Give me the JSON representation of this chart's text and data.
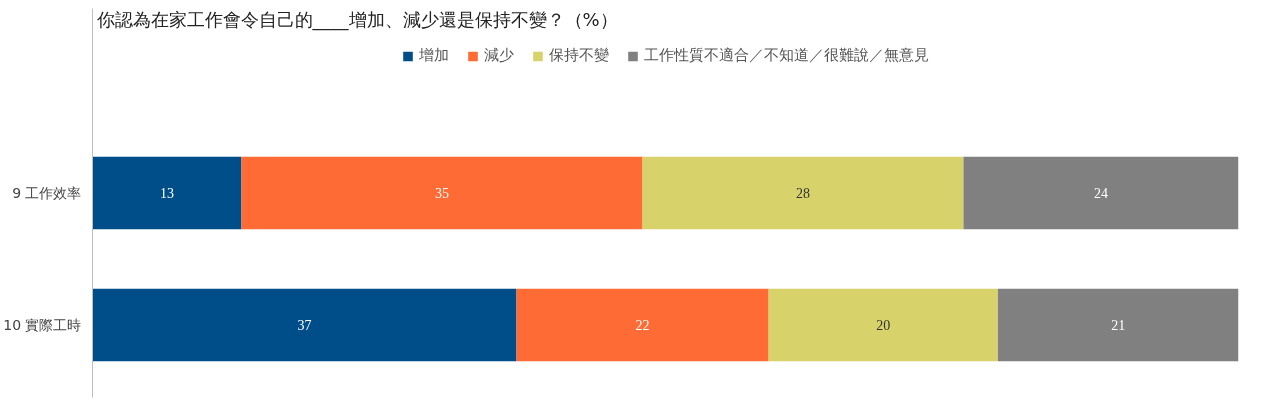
{
  "chart_data": {
    "type": "bar",
    "orientation": "horizontal",
    "stacked": true,
    "title": "你認為在家工作會令自己的____增加、減少還是保持不變？（%）",
    "categories": [
      "9 工作效率",
      "10 實際工時"
    ],
    "series": [
      {
        "name": "增加",
        "color": "#004e89",
        "values": [
          13,
          37
        ]
      },
      {
        "name": "減少",
        "color": "#ff6b35",
        "values": [
          35,
          22
        ]
      },
      {
        "name": "保持不變",
        "color": "#d8d26b",
        "values": [
          28,
          20
        ]
      },
      {
        "name": "工作性質不適合／不知道／很難說／無意見",
        "color": "#808080",
        "values": [
          24,
          21
        ]
      }
    ],
    "xlim": [
      0,
      100
    ],
    "data_labels": true,
    "legend": "top",
    "grid": false,
    "tick_labels": "y"
  }
}
